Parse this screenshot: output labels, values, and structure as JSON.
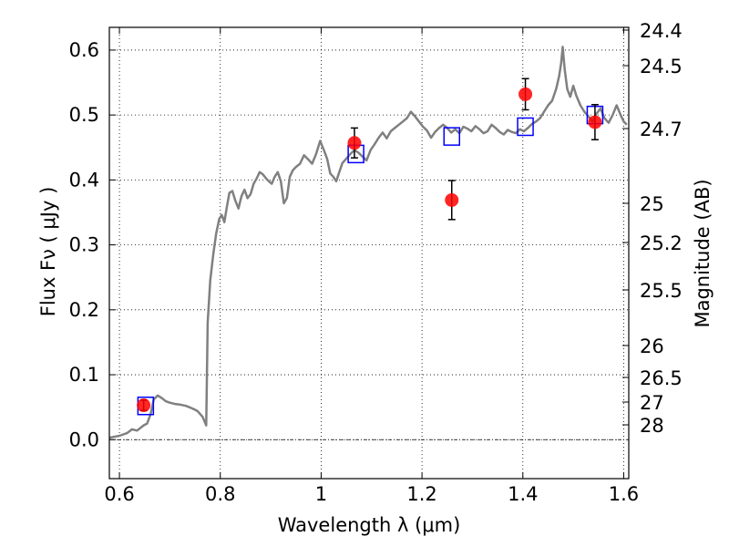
{
  "chart_data": {
    "type": "scatter",
    "xlabel": "Wavelength  λ (μm)",
    "ylabel": "Flux  Fν  ( μJy )",
    "y2label": "Magnitude (AB)",
    "xlim": [
      0.58,
      1.61
    ],
    "ylim": [
      -0.06,
      0.635
    ],
    "grid": true,
    "grid_style": "dotted",
    "x_ticks": [
      {
        "value": 0.6,
        "label": "0.6"
      },
      {
        "value": 0.8,
        "label": "0.8"
      },
      {
        "value": 1.0,
        "label": "1"
      },
      {
        "value": 1.2,
        "label": "1.2"
      },
      {
        "value": 1.4,
        "label": "1.4"
      },
      {
        "value": 1.6,
        "label": "1.6"
      }
    ],
    "y_ticks": [
      {
        "value": 0.0,
        "label": "0.0"
      },
      {
        "value": 0.1,
        "label": "0.1"
      },
      {
        "value": 0.2,
        "label": "0.2"
      },
      {
        "value": 0.3,
        "label": "0.3"
      },
      {
        "value": 0.4,
        "label": "0.4"
      },
      {
        "value": 0.5,
        "label": "0.5"
      },
      {
        "value": 0.6,
        "label": "0.6"
      }
    ],
    "mag_ticks": [
      {
        "label": "24.4"
      },
      {
        "label": "24.5"
      },
      {
        "label": "24.7"
      },
      {
        "label": "25"
      },
      {
        "label": "25.2"
      },
      {
        "label": "25.5"
      },
      {
        "label": "26"
      },
      {
        "label": "26.5"
      },
      {
        "label": "27"
      },
      {
        "label": "28"
      }
    ],
    "series": [
      {
        "kind": "line",
        "color": "#808080",
        "points": [
          [
            0.58,
            0.003
          ],
          [
            0.6,
            0.006
          ],
          [
            0.615,
            0.01
          ],
          [
            0.625,
            0.016
          ],
          [
            0.635,
            0.014
          ],
          [
            0.648,
            0.022
          ],
          [
            0.655,
            0.025
          ],
          [
            0.662,
            0.04
          ],
          [
            0.668,
            0.062
          ],
          [
            0.676,
            0.068
          ],
          [
            0.684,
            0.064
          ],
          [
            0.692,
            0.059
          ],
          [
            0.7,
            0.057
          ],
          [
            0.71,
            0.055
          ],
          [
            0.72,
            0.054
          ],
          [
            0.732,
            0.052
          ],
          [
            0.745,
            0.048
          ],
          [
            0.755,
            0.044
          ],
          [
            0.765,
            0.035
          ],
          [
            0.772,
            0.022
          ],
          [
            0.775,
            0.18
          ],
          [
            0.78,
            0.245
          ],
          [
            0.786,
            0.285
          ],
          [
            0.792,
            0.318
          ],
          [
            0.798,
            0.34
          ],
          [
            0.803,
            0.346
          ],
          [
            0.808,
            0.335
          ],
          [
            0.813,
            0.358
          ],
          [
            0.818,
            0.38
          ],
          [
            0.824,
            0.383
          ],
          [
            0.83,
            0.368
          ],
          [
            0.836,
            0.356
          ],
          [
            0.842,
            0.375
          ],
          [
            0.848,
            0.385
          ],
          [
            0.854,
            0.372
          ],
          [
            0.86,
            0.378
          ],
          [
            0.866,
            0.394
          ],
          [
            0.872,
            0.402
          ],
          [
            0.878,
            0.412
          ],
          [
            0.884,
            0.409
          ],
          [
            0.89,
            0.403
          ],
          [
            0.896,
            0.398
          ],
          [
            0.902,
            0.394
          ],
          [
            0.908,
            0.405
          ],
          [
            0.914,
            0.412
          ],
          [
            0.92,
            0.398
          ],
          [
            0.926,
            0.364
          ],
          [
            0.932,
            0.372
          ],
          [
            0.938,
            0.405
          ],
          [
            0.944,
            0.415
          ],
          [
            0.95,
            0.42
          ],
          [
            0.958,
            0.425
          ],
          [
            0.966,
            0.438
          ],
          [
            0.974,
            0.432
          ],
          [
            0.982,
            0.425
          ],
          [
            0.99,
            0.44
          ],
          [
            0.998,
            0.46
          ],
          [
            1.006,
            0.445
          ],
          [
            1.012,
            0.432
          ],
          [
            1.018,
            0.41
          ],
          [
            1.024,
            0.405
          ],
          [
            1.03,
            0.398
          ],
          [
            1.036,
            0.412
          ],
          [
            1.042,
            0.426
          ],
          [
            1.05,
            0.433
          ],
          [
            1.058,
            0.44
          ],
          [
            1.066,
            0.446
          ],
          [
            1.074,
            0.442
          ],
          [
            1.082,
            0.436
          ],
          [
            1.09,
            0.43
          ],
          [
            1.098,
            0.446
          ],
          [
            1.106,
            0.455
          ],
          [
            1.114,
            0.465
          ],
          [
            1.122,
            0.473
          ],
          [
            1.13,
            0.464
          ],
          [
            1.138,
            0.475
          ],
          [
            1.146,
            0.48
          ],
          [
            1.154,
            0.485
          ],
          [
            1.162,
            0.49
          ],
          [
            1.17,
            0.495
          ],
          [
            1.178,
            0.505
          ],
          [
            1.186,
            0.498
          ],
          [
            1.194,
            0.49
          ],
          [
            1.202,
            0.482
          ],
          [
            1.21,
            0.476
          ],
          [
            1.218,
            0.465
          ],
          [
            1.226,
            0.474
          ],
          [
            1.234,
            0.48
          ],
          [
            1.242,
            0.485
          ],
          [
            1.25,
            0.48
          ],
          [
            1.258,
            0.473
          ],
          [
            1.266,
            0.478
          ],
          [
            1.274,
            0.472
          ],
          [
            1.282,
            0.482
          ],
          [
            1.29,
            0.479
          ],
          [
            1.298,
            0.475
          ],
          [
            1.306,
            0.483
          ],
          [
            1.314,
            0.478
          ],
          [
            1.322,
            0.472
          ],
          [
            1.33,
            0.475
          ],
          [
            1.338,
            0.485
          ],
          [
            1.346,
            0.48
          ],
          [
            1.354,
            0.474
          ],
          [
            1.362,
            0.47
          ],
          [
            1.37,
            0.477
          ],
          [
            1.378,
            0.474
          ],
          [
            1.386,
            0.472
          ],
          [
            1.394,
            0.478
          ],
          [
            1.402,
            0.475
          ],
          [
            1.41,
            0.48
          ],
          [
            1.418,
            0.486
          ],
          [
            1.426,
            0.49
          ],
          [
            1.434,
            0.495
          ],
          [
            1.442,
            0.505
          ],
          [
            1.45,
            0.515
          ],
          [
            1.458,
            0.522
          ],
          [
            1.466,
            0.54
          ],
          [
            1.472,
            0.56
          ],
          [
            1.476,
            0.58
          ],
          [
            1.479,
            0.605
          ],
          [
            1.483,
            0.57
          ],
          [
            1.488,
            0.54
          ],
          [
            1.494,
            0.528
          ],
          [
            1.5,
            0.545
          ],
          [
            1.506,
            0.53
          ],
          [
            1.514,
            0.515
          ],
          [
            1.522,
            0.505
          ],
          [
            1.53,
            0.498
          ],
          [
            1.538,
            0.49
          ],
          [
            1.546,
            0.502
          ],
          [
            1.554,
            0.51
          ],
          [
            1.562,
            0.495
          ],
          [
            1.57,
            0.488
          ],
          [
            1.578,
            0.5
          ],
          [
            1.586,
            0.515
          ],
          [
            1.594,
            0.5
          ],
          [
            1.6,
            0.49
          ],
          [
            1.606,
            0.485
          ]
        ]
      },
      {
        "kind": "observed",
        "color": "#ff0000",
        "points": [
          {
            "x": 0.648,
            "y": 0.053,
            "err": 0.008
          },
          {
            "x": 1.066,
            "y": 0.457,
            "err": 0.023
          },
          {
            "x": 1.259,
            "y": 0.369,
            "err": 0.03
          },
          {
            "x": 1.405,
            "y": 0.532,
            "err": 0.024
          },
          {
            "x": 1.543,
            "y": 0.489,
            "err": 0.027
          }
        ]
      },
      {
        "kind": "model",
        "color": "#0000ff",
        "points": [
          {
            "x": 0.652,
            "y": 0.052
          },
          {
            "x": 1.069,
            "y": 0.44
          },
          {
            "x": 1.259,
            "y": 0.467
          },
          {
            "x": 1.405,
            "y": 0.482
          },
          {
            "x": 1.543,
            "y": 0.5
          }
        ]
      }
    ]
  }
}
